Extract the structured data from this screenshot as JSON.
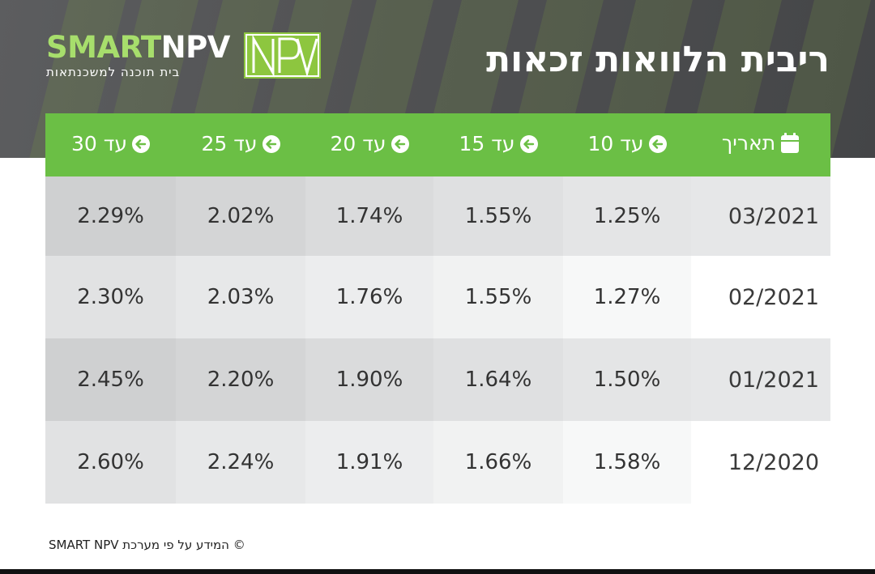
{
  "header": {
    "title": "ריבית הלוואות זכאות",
    "logo_smart": "SMART",
    "logo_npv": "NPV",
    "logo_tagline": "בית תוכנה למשכנתאות",
    "accent_color": "#6bbf45"
  },
  "table": {
    "columns": [
      {
        "label": "תאריך",
        "icon": "calendar-icon"
      },
      {
        "label": "עד 10",
        "icon": "arrow-left-icon"
      },
      {
        "label": "עד 15",
        "icon": "arrow-left-icon"
      },
      {
        "label": "עד 20",
        "icon": "arrow-left-icon"
      },
      {
        "label": "עד 25",
        "icon": "arrow-left-icon"
      },
      {
        "label": "עד 30",
        "icon": "arrow-left-icon"
      }
    ],
    "rows": [
      [
        "03/2021",
        "1.25%",
        "1.55%",
        "1.74%",
        "2.02%",
        "2.29%"
      ],
      [
        "02/2021",
        "1.27%",
        "1.55%",
        "1.76%",
        "2.03%",
        "2.30%"
      ],
      [
        "01/2021",
        "1.50%",
        "1.64%",
        "1.90%",
        "2.20%",
        "2.45%"
      ],
      [
        "12/2020",
        "1.58%",
        "1.66%",
        "1.91%",
        "2.24%",
        "2.60%"
      ]
    ]
  },
  "footer": {
    "note": "© המידע על פי מערכת SMART NPV"
  }
}
